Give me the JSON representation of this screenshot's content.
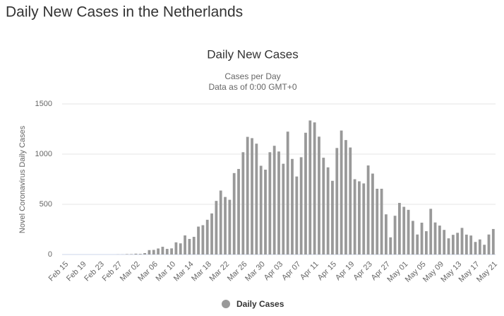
{
  "page_title": "Daily New Cases in the Netherlands",
  "chart_data": {
    "type": "bar",
    "title": "Daily New Cases",
    "subtitle": [
      "Cases per Day",
      "Data as of 0:00 GMT+0"
    ],
    "y_label": "Novel Coronavirus Daily Cases",
    "categories": [
      "Feb 15",
      null,
      null,
      null,
      "Feb 19",
      null,
      null,
      null,
      "Feb 23",
      null,
      null,
      null,
      "Feb 27",
      null,
      null,
      null,
      "Mar 02",
      null,
      null,
      null,
      "Mar 06",
      null,
      null,
      null,
      "Mar 10",
      null,
      null,
      null,
      "Mar 14",
      null,
      null,
      null,
      "Mar 18",
      null,
      null,
      null,
      "Mar 22",
      null,
      null,
      null,
      "Mar 26",
      null,
      null,
      null,
      "Mar 30",
      null,
      null,
      null,
      "Apr 03",
      null,
      null,
      null,
      "Apr 07",
      null,
      null,
      null,
      "Apr 11",
      null,
      null,
      null,
      "Apr 15",
      null,
      null,
      null,
      "Apr 19",
      null,
      null,
      null,
      "Apr 23",
      null,
      null,
      null,
      "Apr 27",
      null,
      null,
      null,
      "May 01",
      null,
      null,
      null,
      "May 05",
      null,
      null,
      null,
      "May 09",
      null,
      null,
      null,
      "May 13",
      null,
      null,
      null,
      "May 17",
      null,
      null,
      null,
      "May 21"
    ],
    "series": [
      {
        "name": "Daily Cases",
        "color": "#999999",
        "values": [
          0,
          0,
          0,
          0,
          0,
          0,
          0,
          0,
          0,
          0,
          0,
          0,
          1,
          1,
          4,
          4,
          8,
          6,
          14,
          44,
          46,
          60,
          77,
          56,
          61,
          121,
          111,
          190,
          155,
          176,
          278,
          292,
          346,
          409,
          534,
          637,
          573,
          545,
          811,
          852,
          1019,
          1172,
          1159,
          1104,
          884,
          845,
          1019,
          1083,
          1026,
          904,
          1224,
          952,
          777,
          969,
          1213,
          1335,
          1316,
          1174,
          964,
          868,
          734,
          1061,
          1235,
          1140,
          1066,
          750,
          729,
          708,
          887,
          806,
          655,
          655,
          400,
          171,
          386,
          514,
          475,
          445,
          335,
          199,
          317,
          232,
          455,
          319,
          288,
          245,
          161,
          196,
          216,
          265,
          198,
          189,
          125,
          150,
          97,
          199,
          254
        ]
      }
    ],
    "ylim": [
      0,
      1500
    ],
    "yticks": [
      0,
      500,
      1000,
      1500
    ],
    "grid": true
  }
}
